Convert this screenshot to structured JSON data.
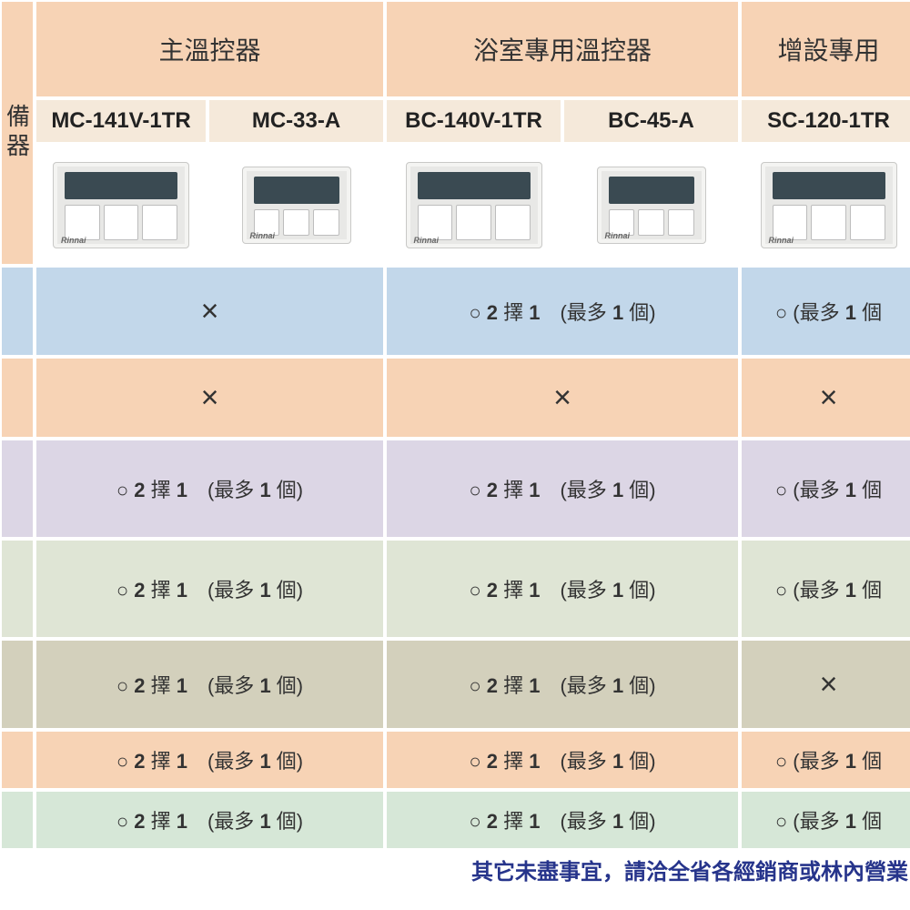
{
  "colors": {
    "peach": "#f7d3b5",
    "cream": "#f5e9da",
    "blue": "#c2d7ea",
    "lavender": "#dcd6e5",
    "sage": "#dfe5d5",
    "olive": "#d3d0bc",
    "mint": "#d6e7d7",
    "white": "#ffffff",
    "footer_text": "#26348b"
  },
  "side": {
    "label": "備器"
  },
  "group_headers": [
    "主溫控器",
    "浴室專用溫控器",
    "增設專用"
  ],
  "models": [
    "MC-141V-1TR",
    "MC-33-A",
    "BC-140V-1TR",
    "BC-45-A",
    "SC-120-1TR"
  ],
  "rows": [
    {
      "bg": "blue",
      "cells": [
        {
          "type": "x",
          "span": 2
        },
        {
          "type": "text",
          "span": 2,
          "value": "○ 2 擇 1　(最多 1 個)"
        },
        {
          "type": "text",
          "span": 1,
          "value": "○ (最多 1 個"
        }
      ]
    },
    {
      "bg": "peach",
      "cells": [
        {
          "type": "x",
          "span": 2
        },
        {
          "type": "x",
          "span": 2
        },
        {
          "type": "x",
          "span": 1
        }
      ]
    },
    {
      "bg": "lavender",
      "cells": [
        {
          "type": "text",
          "span": 2,
          "value": "○ 2 擇 1　(最多 1 個)"
        },
        {
          "type": "text",
          "span": 2,
          "value": "○ 2 擇 1　(最多 1 個)"
        },
        {
          "type": "text",
          "span": 1,
          "value": "○ (最多 1 個"
        }
      ]
    },
    {
      "bg": "sage",
      "cells": [
        {
          "type": "text",
          "span": 2,
          "value": "○ 2 擇 1　(最多 1 個)"
        },
        {
          "type": "text",
          "span": 2,
          "value": "○ 2 擇 1　(最多 1 個)"
        },
        {
          "type": "text",
          "span": 1,
          "value": "○ (最多 1 個"
        }
      ]
    },
    {
      "bg": "olive",
      "cells": [
        {
          "type": "text",
          "span": 2,
          "value": "○ 2 擇 1　(最多 1 個)"
        },
        {
          "type": "text",
          "span": 2,
          "value": "○  2 擇 1　(最多 1 個)"
        },
        {
          "type": "x",
          "span": 1
        }
      ]
    },
    {
      "bg": "peach",
      "cells": [
        {
          "type": "text",
          "span": 2,
          "value": "○  2 擇 1　(最多 1 個)"
        },
        {
          "type": "text",
          "span": 2,
          "value": "○   2 擇 1　(最多 1 個)"
        },
        {
          "type": "text",
          "span": 1,
          "value": "○   (最多 1 個"
        }
      ]
    },
    {
      "bg": "mint",
      "cells": [
        {
          "type": "text",
          "span": 2,
          "value": "○  2 擇 1　(最多 1 個)"
        },
        {
          "type": "text",
          "span": 2,
          "value": "○   2 擇 1　(最多 1 個)"
        },
        {
          "type": "text",
          "span": 1,
          "value": "○   (最多 1 個"
        }
      ]
    }
  ],
  "footer": "其它未盡事宜，請洽全省各經銷商或林內營業"
}
